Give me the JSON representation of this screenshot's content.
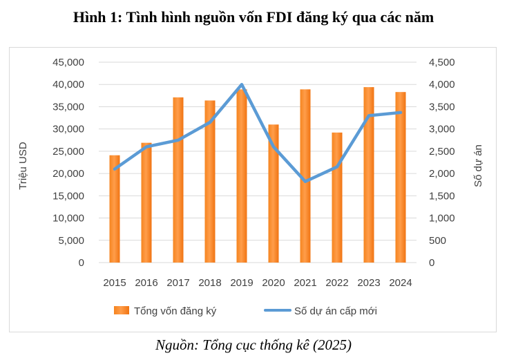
{
  "title": "Hình 1: Tình hình nguồn vốn FDI đăng ký qua các năm",
  "source": "Nguồn: Tổng cục thống kê (2025)",
  "colors": {
    "bar": "#f47f1f",
    "bar_light": "#ffb37a",
    "line": "#5b9bd5"
  },
  "chart_data": {
    "type": "bar",
    "categories": [
      "2015",
      "2016",
      "2017",
      "2018",
      "2019",
      "2020",
      "2021",
      "2022",
      "2023",
      "2024"
    ],
    "series": [
      {
        "name": "Tổng vốn đăng ký",
        "type": "bar",
        "axis": "left",
        "values": [
          24100,
          26900,
          37100,
          36400,
          38900,
          31000,
          38900,
          29200,
          39400,
          38300
        ]
      },
      {
        "name": "Số dự án cấp mới",
        "type": "line",
        "axis": "right",
        "values": [
          2100,
          2600,
          2750,
          3150,
          4000,
          2600,
          1820,
          2150,
          3300,
          3370
        ]
      }
    ],
    "ylabel": "Triệu USD",
    "y2label": "Số dự án",
    "ylim": [
      0,
      45000
    ],
    "y2lim": [
      0,
      4500
    ],
    "yticks": [
      "0",
      "5,000",
      "10,000",
      "15,000",
      "20,000",
      "25,000",
      "30,000",
      "35,000",
      "40,000",
      "45,000"
    ],
    "y2ticks": [
      "0",
      "500",
      "1,000",
      "1,500",
      "2,000",
      "2,500",
      "3,000",
      "3,500",
      "4,000",
      "4,500"
    ],
    "grid": true,
    "legend_position": "bottom"
  }
}
